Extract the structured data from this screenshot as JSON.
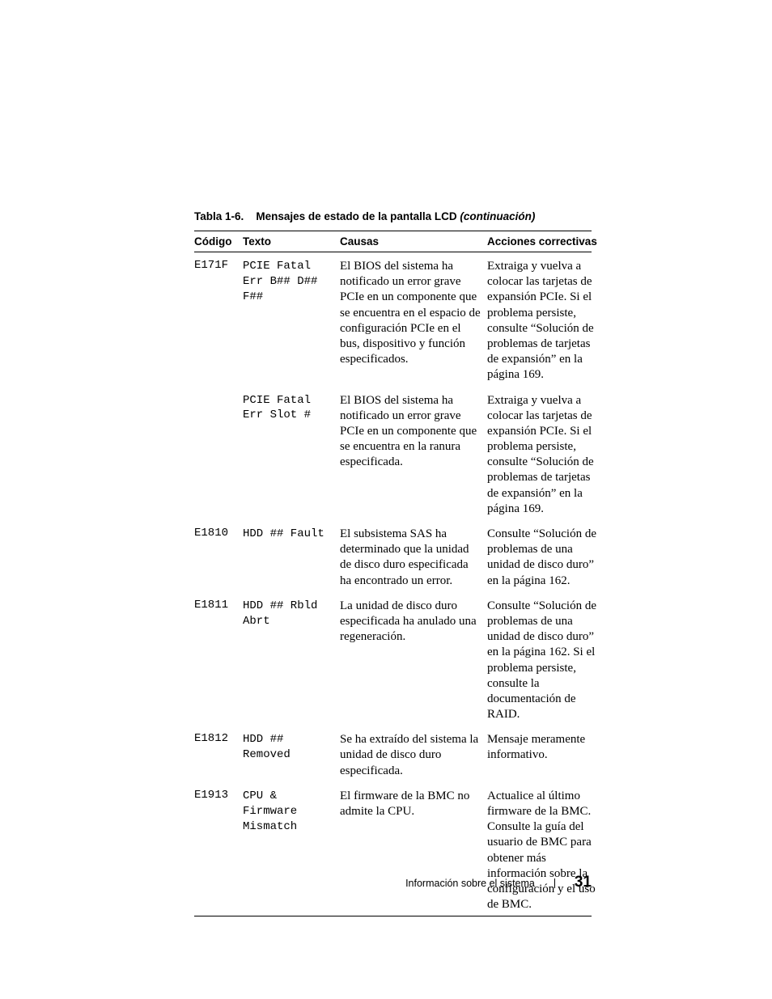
{
  "caption": {
    "label": "Tabla 1-6.",
    "title": "Mensajes de estado de la pantalla LCD",
    "cont": "(continuación)"
  },
  "headers": {
    "code": "Código",
    "text": "Texto",
    "cause": "Causas",
    "action": "Acciones correctivas"
  },
  "rows": [
    {
      "code": "E171F",
      "text": "PCIE Fatal\nErr B## D##\nF##",
      "cause": "El BIOS del sistema ha notificado un error grave PCIe en un componente que se encuentra en el espacio de configuración PCIe en el bus, dispositivo y función especificados.",
      "action": "Extraiga y vuelva a colocar las tarjetas de expansión PCIe. Si el problema persiste, consulte “Solución de problemas de tarjetas de expansión” en la página 169."
    },
    {
      "code": "",
      "text": "PCIE Fatal\nErr Slot #",
      "cause": "El BIOS del sistema ha notificado un error grave PCIe en un componente que se encuentra en la ranura especificada.",
      "action": "Extraiga y vuelva a colocar las tarjetas de expansión PCIe. Si el problema persiste, consulte “Solución de problemas de tarjetas de expansión” en la página 169."
    },
    {
      "code": "E1810",
      "text": "HDD ## Fault",
      "cause": "El subsistema SAS ha determinado que la unidad de disco duro especificada ha encontrado un error.",
      "action": "Consulte “Solución de problemas de una unidad de disco duro” en la página 162."
    },
    {
      "code": "E1811",
      "text": "HDD ## Rbld\nAbrt",
      "cause": "La unidad de disco duro especificada ha anulado una regeneración.",
      "action": "Consulte “Solución de problemas de una unidad de disco duro” en la página 162. Si el pro­blema persiste, consulte la documentación de RAID."
    },
    {
      "code": "E1812",
      "text": "HDD ##\nRemoved",
      "cause": "Se ha extraído del sistema la unidad de disco duro especificada.",
      "action": "Mensaje meramente informativo."
    },
    {
      "code": "E1913",
      "text": "CPU &\nFirmware\nMismatch",
      "cause": "El firmware de la BMC no admite la CPU.",
      "action": "Actualice al último firmware de la BMC. Consulte la guía del usuario de BMC para obtener más información sobre la configuración y el uso de BMC."
    }
  ],
  "footer": {
    "section": "Información sobre el sistema",
    "page": "31"
  }
}
